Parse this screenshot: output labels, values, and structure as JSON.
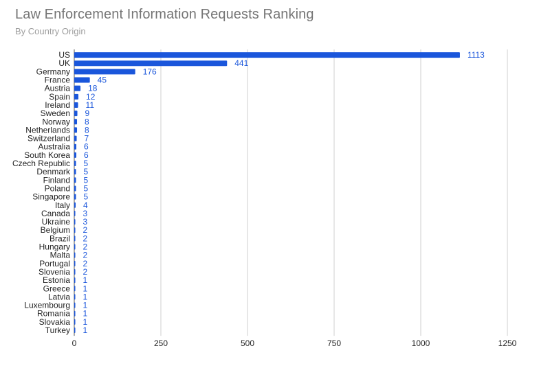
{
  "chart_data": {
    "type": "bar",
    "orientation": "horizontal",
    "title": "Law Enforcement Information Requests Ranking",
    "subtitle": "By Country Origin",
    "xlabel": "",
    "ylabel": "",
    "xlim": [
      0,
      1250
    ],
    "x_ticks": [
      0,
      250,
      500,
      750,
      1000,
      1250
    ],
    "grid": true,
    "legend": "none",
    "bar_color": "#1a56db",
    "categories": [
      "US",
      "UK",
      "Germany",
      "France",
      "Austria",
      "Spain",
      "Ireland",
      "Sweden",
      "Norway",
      "Netherlands",
      "Switzerland",
      "Australia",
      "South Korea",
      "Czech Republic",
      "Denmark",
      "Finland",
      "Poland",
      "Singapore",
      "Italy",
      "Canada",
      "Ukraine",
      "Belgium",
      "Brazil",
      "Hungary",
      "Malta",
      "Portugal",
      "Slovenia",
      "Estonia",
      "Greece",
      "Latvia",
      "Luxembourg",
      "Romania",
      "Slovakia",
      "Turkey"
    ],
    "values": [
      1113,
      441,
      176,
      45,
      18,
      12,
      11,
      9,
      8,
      8,
      7,
      6,
      6,
      5,
      5,
      5,
      5,
      5,
      4,
      3,
      3,
      2,
      2,
      2,
      2,
      2,
      2,
      1,
      1,
      1,
      1,
      1,
      1,
      1
    ]
  }
}
